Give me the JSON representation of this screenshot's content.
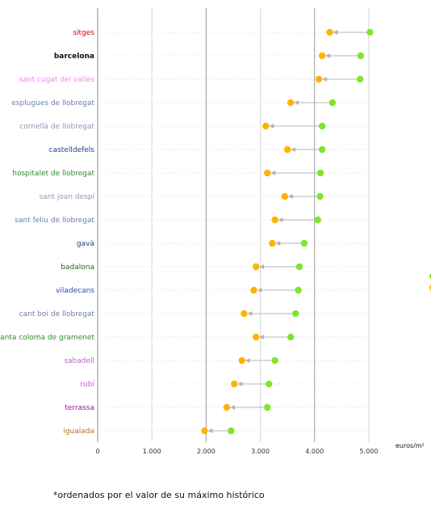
{
  "chart_data": {
    "type": "dumbbell",
    "xlabel": "euros/m²",
    "xlim": [
      0,
      5000
    ],
    "xticks": [
      0,
      1000,
      2000,
      3000,
      4000,
      5000
    ],
    "xtick_labels": [
      "0",
      "1.000",
      "2.000",
      "3.000",
      "4.000",
      "5.000"
    ],
    "grid": "vertical",
    "colors": {
      "from": "#7fe62a",
      "to": "#ffb300",
      "connector": "#b4b4b4"
    },
    "categories": [
      {
        "label": "sitges",
        "color": "#cc0000",
        "bold": false
      },
      {
        "label": "barcelona",
        "color": "#111111",
        "bold": true
      },
      {
        "label": "sant cugat del vallès",
        "color": "#ee88ee",
        "bold": false
      },
      {
        "label": "esplugues de llobregat",
        "color": "#6a7fa8",
        "bold": false
      },
      {
        "label": "cornellà de llobregat",
        "color": "#8a9ab8",
        "bold": false
      },
      {
        "label": "castelldefels",
        "color": "#1c3f8a",
        "bold": false
      },
      {
        "label": "hospitalet de llobregat",
        "color": "#2e8b2e",
        "bold": false
      },
      {
        "label": "sant joan despí",
        "color": "#8a9ab8",
        "bold": false
      },
      {
        "label": "sant feliu de llobregat",
        "color": "#6a7fa8",
        "bold": false
      },
      {
        "label": "gavà",
        "color": "#1c3f8a",
        "bold": false
      },
      {
        "label": "badalona",
        "color": "#1a6b1a",
        "bold": false
      },
      {
        "label": "viladecans",
        "color": "#2a4f9a",
        "bold": false
      },
      {
        "label": "cant boi de llobregat",
        "color": "#6a7fa8",
        "bold": false
      },
      {
        "label": "santa coloma de gramenet",
        "color": "#2e8b2e",
        "bold": false
      },
      {
        "label": "sabadell",
        "color": "#c060d0",
        "bold": false
      },
      {
        "label": "rubí",
        "color": "#c060d0",
        "bold": false
      },
      {
        "label": "terrassa",
        "color": "#9a10a8",
        "bold": false
      },
      {
        "label": "igualada",
        "color": "#b8741a",
        "bold": false
      }
    ],
    "series": [
      {
        "values": [
          5020,
          4850,
          4840,
          4330,
          4140,
          4140,
          4110,
          4100,
          4060,
          3810,
          3720,
          3700,
          3650,
          3560,
          3270,
          3160,
          3130,
          2460
        ]
      },
      {
        "values": [
          4280,
          4140,
          4080,
          3560,
          3100,
          3500,
          3130,
          3450,
          3270,
          3220,
          2920,
          2880,
          2700,
          2920,
          2660,
          2520,
          2380,
          1970
        ]
      }
    ],
    "footnote": "*ordenados por el valor de su máximo histórico"
  }
}
